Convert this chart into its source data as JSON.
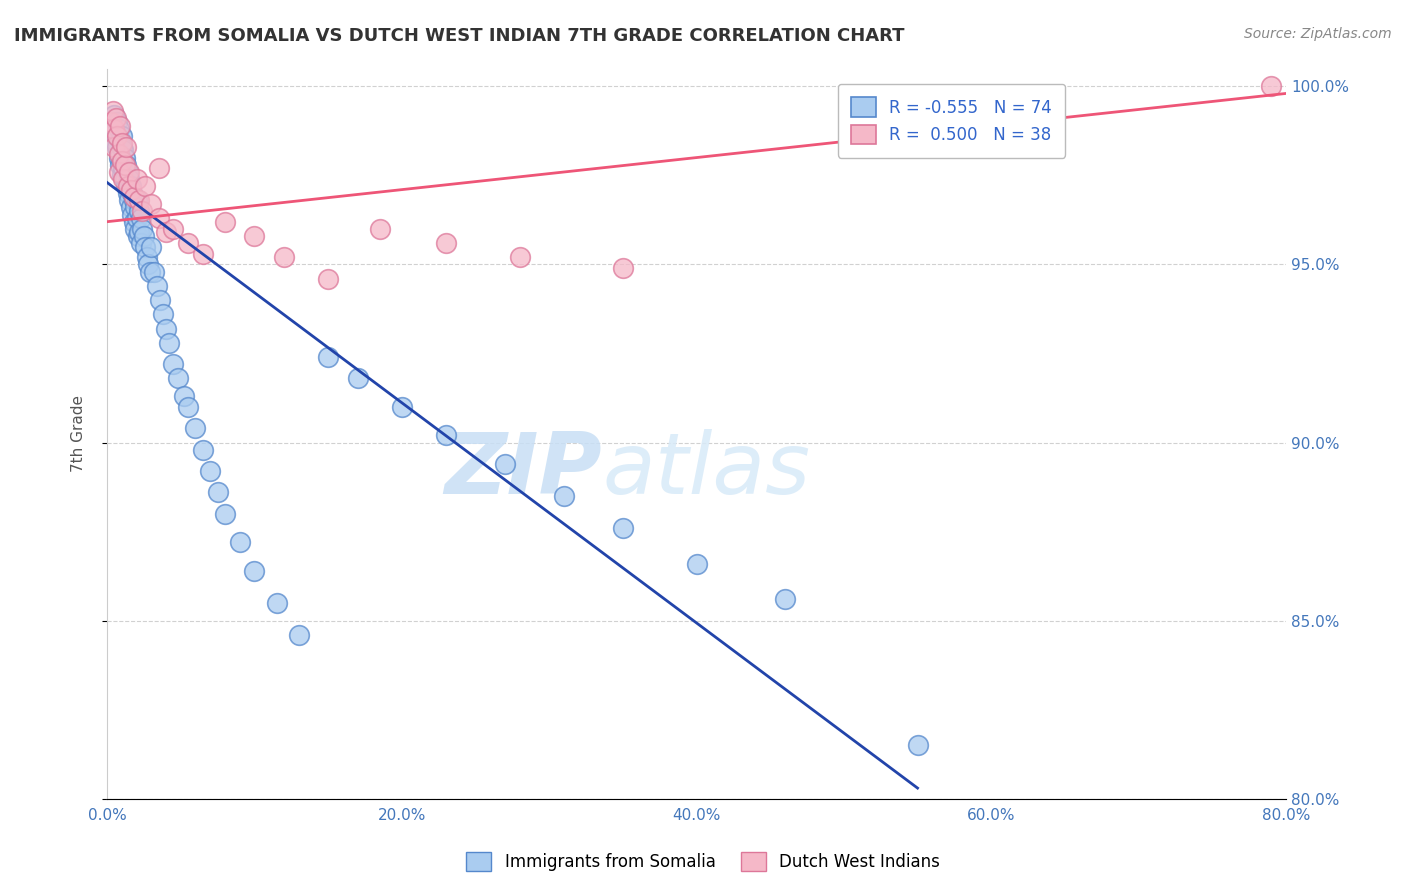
{
  "title": "IMMIGRANTS FROM SOMALIA VS DUTCH WEST INDIAN 7TH GRADE CORRELATION CHART",
  "source_text": "Source: ZipAtlas.com",
  "ylabel": "7th Grade",
  "xlim": [
    0.0,
    0.8
  ],
  "ylim": [
    0.8,
    1.005
  ],
  "xtick_labels": [
    "0.0%",
    "20.0%",
    "40.0%",
    "60.0%",
    "80.0%"
  ],
  "xtick_vals": [
    0.0,
    0.2,
    0.4,
    0.6,
    0.8
  ],
  "ytick_labels": [
    "80.0%",
    "85.0%",
    "90.0%",
    "95.0%",
    "100.0%"
  ],
  "ytick_vals": [
    0.8,
    0.85,
    0.9,
    0.95,
    1.0
  ],
  "watermark_zip": "ZIP",
  "watermark_atlas": "atlas",
  "legend_R_somalia": "-0.555",
  "legend_N_somalia": "74",
  "legend_R_dutch": "0.500",
  "legend_N_dutch": "38",
  "somalia_color": "#aaccf0",
  "dutch_color": "#f5b8c8",
  "somalia_edge_color": "#5588cc",
  "dutch_edge_color": "#dd7799",
  "trend_somalia_color": "#2244aa",
  "trend_dutch_color": "#ee5577",
  "background_color": "#ffffff",
  "grid_color": "#cccccc",
  "title_color": "#333333",
  "legend_text_color": "#3366cc",
  "somalia_x": [
    0.003,
    0.005,
    0.005,
    0.007,
    0.007,
    0.008,
    0.008,
    0.009,
    0.009,
    0.01,
    0.01,
    0.01,
    0.01,
    0.011,
    0.011,
    0.012,
    0.012,
    0.013,
    0.013,
    0.014,
    0.014,
    0.015,
    0.015,
    0.016,
    0.016,
    0.017,
    0.017,
    0.018,
    0.018,
    0.019,
    0.019,
    0.02,
    0.02,
    0.021,
    0.022,
    0.022,
    0.023,
    0.023,
    0.024,
    0.025,
    0.026,
    0.027,
    0.028,
    0.029,
    0.03,
    0.032,
    0.034,
    0.036,
    0.038,
    0.04,
    0.042,
    0.045,
    0.048,
    0.052,
    0.055,
    0.06,
    0.065,
    0.07,
    0.075,
    0.08,
    0.09,
    0.1,
    0.115,
    0.13,
    0.15,
    0.17,
    0.2,
    0.23,
    0.27,
    0.31,
    0.35,
    0.4,
    0.46,
    0.55
  ],
  "somalia_y": [
    0.987,
    0.992,
    0.985,
    0.99,
    0.983,
    0.988,
    0.98,
    0.985,
    0.978,
    0.986,
    0.983,
    0.979,
    0.975,
    0.982,
    0.977,
    0.98,
    0.974,
    0.978,
    0.972,
    0.976,
    0.97,
    0.974,
    0.968,
    0.972,
    0.966,
    0.97,
    0.964,
    0.968,
    0.962,
    0.966,
    0.96,
    0.968,
    0.963,
    0.958,
    0.965,
    0.959,
    0.963,
    0.956,
    0.96,
    0.958,
    0.955,
    0.952,
    0.95,
    0.948,
    0.955,
    0.948,
    0.944,
    0.94,
    0.936,
    0.932,
    0.928,
    0.922,
    0.918,
    0.913,
    0.91,
    0.904,
    0.898,
    0.892,
    0.886,
    0.88,
    0.872,
    0.864,
    0.855,
    0.846,
    0.924,
    0.918,
    0.91,
    0.902,
    0.894,
    0.885,
    0.876,
    0.866,
    0.856,
    0.815
  ],
  "dutch_x": [
    0.003,
    0.004,
    0.005,
    0.005,
    0.006,
    0.007,
    0.008,
    0.008,
    0.009,
    0.01,
    0.01,
    0.011,
    0.012,
    0.013,
    0.014,
    0.015,
    0.016,
    0.018,
    0.02,
    0.022,
    0.024,
    0.026,
    0.03,
    0.035,
    0.04,
    0.045,
    0.055,
    0.065,
    0.08,
    0.1,
    0.12,
    0.15,
    0.185,
    0.23,
    0.28,
    0.35,
    0.79,
    0.035
  ],
  "dutch_y": [
    0.99,
    0.993,
    0.988,
    0.983,
    0.991,
    0.986,
    0.981,
    0.976,
    0.989,
    0.984,
    0.979,
    0.974,
    0.978,
    0.983,
    0.972,
    0.976,
    0.971,
    0.969,
    0.974,
    0.968,
    0.965,
    0.972,
    0.967,
    0.963,
    0.959,
    0.96,
    0.956,
    0.953,
    0.962,
    0.958,
    0.952,
    0.946,
    0.96,
    0.956,
    0.952,
    0.949,
    1.0,
    0.977
  ]
}
